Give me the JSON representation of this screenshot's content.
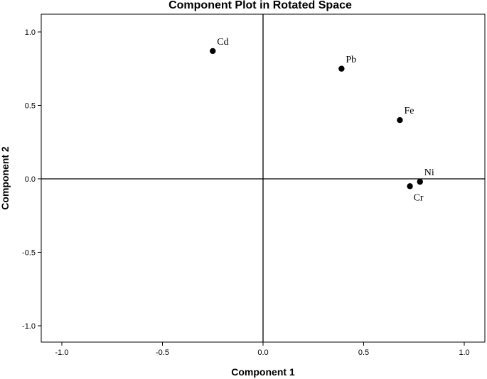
{
  "chart_data": {
    "type": "scatter",
    "title": "Component Plot in Rotated Space",
    "xlabel": "Component 1",
    "ylabel": "Component 2",
    "xlim": [
      -1.1,
      1.1
    ],
    "ylim": [
      -1.1,
      1.1
    ],
    "x_ticks": [
      -1.0,
      -0.5,
      0.0,
      0.5,
      1.0
    ],
    "x_tick_labels": [
      "-1.0",
      "-0.5",
      "0.0",
      "0.5",
      "1.0"
    ],
    "y_ticks": [
      1.0,
      0.5,
      0.0,
      -0.5,
      -1.0
    ],
    "y_tick_labels": [
      "1.0",
      "0.5",
      "0.0",
      "-0.5",
      "-1.0"
    ],
    "grid": false,
    "reference_lines": {
      "x": 0,
      "y": 0
    },
    "marker_color": "#000000",
    "points": [
      {
        "label": "Cd",
        "x": -0.25,
        "y": 0.87
      },
      {
        "label": "Pb",
        "x": 0.39,
        "y": 0.75
      },
      {
        "label": "Fe",
        "x": 0.68,
        "y": 0.4
      },
      {
        "label": "Ni",
        "x": 0.78,
        "y": -0.02
      },
      {
        "label": "Cr",
        "x": 0.73,
        "y": -0.05
      }
    ]
  }
}
